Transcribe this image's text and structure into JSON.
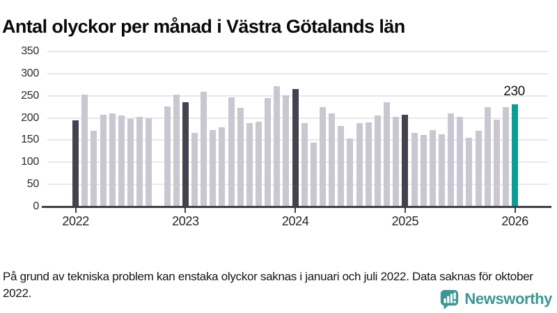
{
  "header": {
    "title": "Antal olyckor per månad i Västra Götalands län"
  },
  "footer": {
    "note": "På grund av tekniska problem kan enstaka olyckor saknas i januari och juli 2022. Data saknas för oktober 2022.",
    "brand": "Newsworthy"
  },
  "colors": {
    "bar_default": "#c9c7d2",
    "bar_accent_january": "#454250",
    "bar_highlight": "#0b9e94",
    "gridline": "#e9e8ea",
    "axis": "#3f3e45",
    "logo_teal": "#3a9795"
  },
  "chart_data": {
    "type": "bar",
    "title": "Antal olyckor per månad i Västra Götalands län",
    "xlabel": "",
    "ylabel": "",
    "ylim": [
      0,
      350
    ],
    "y_tick_step": 50,
    "grid": true,
    "missing_month": "2022-10",
    "months": [
      "2022-01",
      "2022-02",
      "2022-03",
      "2022-04",
      "2022-05",
      "2022-06",
      "2022-07",
      "2022-08",
      "2022-09",
      "2022-10",
      "2022-11",
      "2022-12",
      "2023-01",
      "2023-02",
      "2023-03",
      "2023-04",
      "2023-05",
      "2023-06",
      "2023-07",
      "2023-08",
      "2023-09",
      "2023-10",
      "2023-11",
      "2023-12",
      "2024-01",
      "2024-02",
      "2024-03",
      "2024-04",
      "2024-05",
      "2024-06",
      "2024-07",
      "2024-08",
      "2024-09",
      "2024-10",
      "2024-11",
      "2024-12",
      "2025-01",
      "2025-02",
      "2025-03",
      "2025-04",
      "2025-05",
      "2025-06",
      "2025-07",
      "2025-08",
      "2025-09",
      "2025-10",
      "2025-11",
      "2025-12",
      "2026-01"
    ],
    "values": [
      195,
      253,
      171,
      207,
      211,
      206,
      197,
      203,
      199,
      null,
      226,
      252,
      236,
      166,
      259,
      172,
      179,
      246,
      223,
      189,
      192,
      245,
      271,
      251,
      266,
      188,
      144,
      224,
      210,
      182,
      154,
      188,
      190,
      206,
      236,
      203,
      207,
      167,
      162,
      172,
      163,
      211,
      202,
      155,
      171,
      225,
      196,
      225,
      230
    ],
    "accent_indices": [
      0,
      12,
      24,
      36
    ],
    "highlight": {
      "index": 48,
      "label": "230"
    },
    "year_ticks": [
      {
        "label": "2022",
        "month_index": 0
      },
      {
        "label": "2023",
        "month_index": 12
      },
      {
        "label": "2024",
        "month_index": 24
      },
      {
        "label": "2025",
        "month_index": 36
      },
      {
        "label": "2026",
        "month_index": 48
      }
    ]
  }
}
